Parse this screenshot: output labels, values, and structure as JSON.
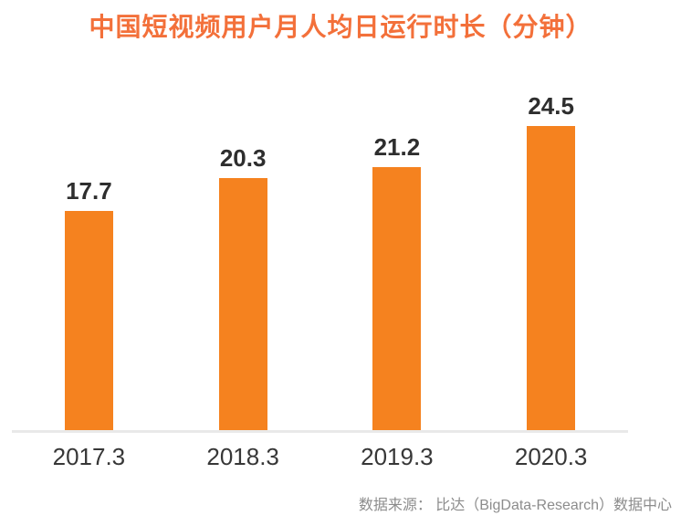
{
  "title": "中国短视频用户月人均日运行时长（分钟）",
  "source": "数据来源： 比达（BigData-Research）数据中心",
  "colors": {
    "bar": "#F5821F",
    "title": "#F3703A",
    "axis_line": "#E9E9E9",
    "value_label": "#2E2E2E",
    "x_label": "#373737",
    "source_text": "#8C8C8C",
    "background": "#FFFFFF"
  },
  "chart_data": {
    "type": "bar",
    "categories": [
      "2017.3",
      "2018.3",
      "2019.3",
      "2020.3"
    ],
    "values": [
      17.7,
      20.3,
      21.2,
      24.5
    ],
    "value_labels": [
      "17.7",
      "20.3",
      "21.2",
      "24.5"
    ],
    "title": "中国短视频用户月人均日运行时长（分钟）",
    "xlabel": "",
    "ylabel": "",
    "ylim": [
      0,
      28
    ],
    "grid": false,
    "legend": false,
    "bar_color": "#F5821F",
    "baseline_axis": "x",
    "source": "数据来源： 比达（BigData-Research）数据中心"
  }
}
